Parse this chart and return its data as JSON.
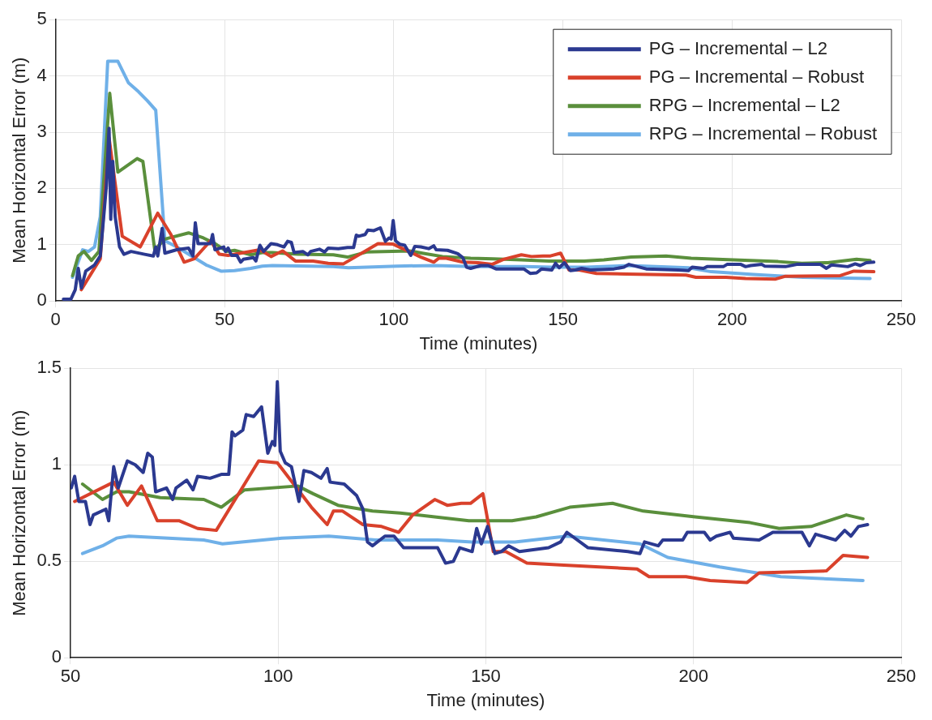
{
  "chart_data": [
    {
      "type": "line",
      "xlabel": "Time (minutes)",
      "ylabel": "Mean Horizontal Error (m)",
      "xlim": [
        0,
        250
      ],
      "ylim": [
        0,
        5
      ],
      "xticks": [
        0,
        50,
        100,
        150,
        200,
        250
      ],
      "yticks": [
        0,
        1,
        2,
        3,
        4,
        5
      ],
      "grid": true,
      "legend": "top right",
      "series": [
        {
          "name": "PG – Incremental – L2",
          "color": "#2b3990",
          "x": [
            2.3,
            4.5,
            5.8,
            6.7,
            7.6,
            8.9,
            11.5,
            13.2,
            15,
            15.8,
            16.3,
            16.9,
            17.6,
            18.9,
            20.2,
            22.3,
            26.3,
            28.9,
            29.6,
            30.2,
            31.5,
            32.3,
            35.8,
            39.3,
            40.6,
            41.3,
            42.1,
            45.8,
            46.4,
            47.1,
            49.7,
            50.2,
            51,
            52,
            53.6,
            54.7,
            55.5,
            58.5,
            59.2,
            60.4,
            61.5,
            63.7,
            65.6,
            67.5,
            68.6,
            69.7,
            70.5,
            73.1,
            74.6,
            75.4,
            78,
            79.5,
            80.6,
            83.6,
            86.3,
            88.1,
            88.9,
            89.6,
            91.5,
            92.3,
            94.1,
            96,
            97.5,
            98.6,
            99.2,
            99.8,
            100.5,
            101.7,
            103.2,
            105,
            106.2,
            108,
            110.3,
            111.8,
            112.5,
            115.9,
            118.9,
            120.4,
            121.5,
            122.7,
            125.7,
            127.9,
            130.2,
            136.2,
            138.4,
            140.3,
            142.2,
            143.7,
            146.7,
            147.8,
            148.9,
            150.4,
            152.2,
            153.7,
            155.5,
            158.1,
            165.1,
            168,
            169.5,
            174.6,
            184.2,
            187.1,
            188.2,
            191.5,
            192.6,
            197.4,
            198.5,
            202.6,
            204,
            205.5,
            208.8,
            209.6,
            215.8,
            219.1,
            226.1,
            227.9,
            229.4,
            234.2,
            236.4,
            237.9,
            239.7,
            241.9
          ],
          "values": [
            0.03,
            0.03,
            0.2,
            0.58,
            0.23,
            0.53,
            0.64,
            0.8,
            2.04,
            3.07,
            1.45,
            2.48,
            1.5,
            0.96,
            0.83,
            0.88,
            0.83,
            0.8,
            0.96,
            0.8,
            1.29,
            0.85,
            0.91,
            0.94,
            0.8,
            1.39,
            1.02,
            1.02,
            1.18,
            0.91,
            0.96,
            0.88,
            0.94,
            0.81,
            0.81,
            0.69,
            0.74,
            0.77,
            0.71,
            0.99,
            0.88,
            1.02,
            1.0,
            0.96,
            1.06,
            1.04,
            0.86,
            0.88,
            0.82,
            0.88,
            0.92,
            0.87,
            0.94,
            0.93,
            0.95,
            0.95,
            1.17,
            1.15,
            1.18,
            1.26,
            1.25,
            1.3,
            1.06,
            1.12,
            1.1,
            1.43,
            1.07,
            1.01,
            0.99,
            0.81,
            0.97,
            0.96,
            0.93,
            0.98,
            0.91,
            0.9,
            0.84,
            0.77,
            0.6,
            0.58,
            0.63,
            0.63,
            0.57,
            0.57,
            0.57,
            0.49,
            0.5,
            0.57,
            0.55,
            0.67,
            0.59,
            0.68,
            0.54,
            0.55,
            0.58,
            0.55,
            0.57,
            0.6,
            0.65,
            0.57,
            0.55,
            0.54,
            0.6,
            0.58,
            0.61,
            0.61,
            0.65,
            0.65,
            0.61,
            0.63,
            0.65,
            0.62,
            0.61,
            0.65,
            0.65,
            0.58,
            0.64,
            0.61,
            0.66,
            0.63,
            0.68,
            0.69
          ]
        },
        {
          "name": "PG – Incremental – Robust",
          "color": "#d9412b",
          "x": [
            7.6,
            13.2,
            15.8,
            19.7,
            25,
            30.2,
            34.1,
            38,
            41,
            45.8,
            48.4,
            51,
            60.4,
            63.7,
            67.1,
            70.9,
            76.1,
            80.6,
            85.1,
            95.3,
            99.8,
            108,
            111.8,
            113.3,
            115.5,
            120.4,
            124.9,
            129,
            132.4,
            137.7,
            140.7,
            144.1,
            146.3,
            149.3,
            151.8,
            154.8,
            159.9,
            168.8,
            186.4,
            189.3,
            198.2,
            204,
            212.9,
            215.8,
            232,
            236,
            241.9
          ],
          "values": [
            0.2,
            0.75,
            2.9,
            1.15,
            0.96,
            1.56,
            1.18,
            0.69,
            0.75,
            1.07,
            0.83,
            0.81,
            0.91,
            0.79,
            0.89,
            0.71,
            0.71,
            0.67,
            0.66,
            1.02,
            1.01,
            0.78,
            0.69,
            0.76,
            0.76,
            0.69,
            0.68,
            0.65,
            0.74,
            0.82,
            0.79,
            0.8,
            0.8,
            0.85,
            0.55,
            0.55,
            0.49,
            0.48,
            0.46,
            0.42,
            0.42,
            0.4,
            0.39,
            0.44,
            0.45,
            0.53,
            0.52
          ]
        },
        {
          "name": "RPG – Incremental – L2",
          "color": "#5a8f3c",
          "x": [
            5,
            6.7,
            8.4,
            10.6,
            12.8,
            16,
            18.4,
            24.1,
            25.8,
            29.3,
            32.3,
            39.3,
            43.7,
            47.1,
            50.6,
            52.9,
            57.7,
            61.1,
            64.1,
            71.6,
            82.1,
            86.3,
            91.9,
            104.7,
            108.4,
            114.4,
            122.7,
            129.4,
            137.7,
            145.9,
            156.3,
            162.1,
            170.2,
            180.5,
            187.9,
            200.4,
            213.6,
            220.6,
            228.3,
            236.8,
            240.8
          ],
          "values": [
            0.45,
            0.8,
            0.88,
            0.72,
            0.88,
            3.69,
            2.29,
            2.53,
            2.48,
            0.91,
            1.1,
            1.21,
            1.12,
            1.02,
            0.88,
            0.9,
            0.82,
            0.86,
            0.86,
            0.83,
            0.82,
            0.78,
            0.87,
            0.89,
            0.85,
            0.79,
            0.76,
            0.75,
            0.73,
            0.71,
            0.71,
            0.73,
            0.78,
            0.8,
            0.76,
            0.73,
            0.7,
            0.67,
            0.68,
            0.74,
            0.72
          ]
        },
        {
          "name": "RPG – Incremental – Robust",
          "color": "#6fb0e8",
          "x": [
            5,
            8,
            9.7,
            11.5,
            13.2,
            15.4,
            18.4,
            21.5,
            24.5,
            27.1,
            29.6,
            32.3,
            35.8,
            40.2,
            44.5,
            48.9,
            52.9,
            57.7,
            61.1,
            64.1,
            82.1,
            86.6,
            100.9,
            112.2,
            123.4,
            138.4,
            146.7,
            150,
            157,
            169.5,
            187.1,
            193.8,
            206.3,
            221,
            240.8
          ],
          "values": [
            0.42,
            0.91,
            0.88,
            0.96,
            1.5,
            4.26,
            4.26,
            3.88,
            3.72,
            3.56,
            3.39,
            1.07,
            0.96,
            0.8,
            0.64,
            0.53,
            0.54,
            0.58,
            0.62,
            0.63,
            0.61,
            0.59,
            0.62,
            0.63,
            0.61,
            0.61,
            0.6,
            0.6,
            0.6,
            0.63,
            0.59,
            0.52,
            0.47,
            0.42,
            0.4
          ]
        }
      ]
    },
    {
      "type": "line",
      "xlabel": "Time (minutes)",
      "ylabel": "Mean Horizontal Error (m)",
      "xlim": [
        50,
        250
      ],
      "ylim": [
        0,
        1.5
      ],
      "xticks": [
        50,
        100,
        150,
        200,
        250
      ],
      "yticks": [
        0,
        0.5,
        1,
        1.5
      ],
      "grid": true,
      "series": [
        {
          "color": "#2b3990",
          "x": [
            50.2,
            51,
            52,
            53.6,
            54.7,
            55.5,
            58.5,
            59.2,
            60.4,
            61.5,
            63.7,
            65.6,
            67.5,
            68.6,
            69.7,
            70.5,
            73.1,
            74.6,
            75.4,
            78,
            79.5,
            80.6,
            83.6,
            86.3,
            88.1,
            88.9,
            89.6,
            91.5,
            92.3,
            94.1,
            96,
            97.5,
            98.6,
            99.2,
            99.8,
            100.5,
            101.7,
            103.2,
            105,
            106.2,
            108,
            110.3,
            111.8,
            112.5,
            115.9,
            118.9,
            120.4,
            121.5,
            122.7,
            125.7,
            127.9,
            130.2,
            136.2,
            138.4,
            140.3,
            142.2,
            143.7,
            146.7,
            147.8,
            148.9,
            150.4,
            152.2,
            153.7,
            155.5,
            158.1,
            165.1,
            168,
            169.5,
            174.6,
            184.2,
            187.1,
            188.2,
            191.5,
            192.6,
            197.4,
            198.5,
            202.6,
            204,
            205.5,
            208.8,
            209.6,
            215.8,
            219.1,
            226.1,
            227.9,
            229.4,
            234.2,
            236.4,
            237.9,
            239.7,
            241.9
          ],
          "values": [
            0.88,
            0.94,
            0.81,
            0.81,
            0.69,
            0.74,
            0.77,
            0.71,
            0.99,
            0.88,
            1.02,
            1.0,
            0.96,
            1.06,
            1.04,
            0.86,
            0.88,
            0.82,
            0.88,
            0.92,
            0.87,
            0.94,
            0.93,
            0.95,
            0.95,
            1.17,
            1.15,
            1.18,
            1.26,
            1.25,
            1.3,
            1.06,
            1.12,
            1.1,
            1.43,
            1.07,
            1.01,
            0.99,
            0.81,
            0.97,
            0.96,
            0.93,
            0.98,
            0.91,
            0.9,
            0.84,
            0.77,
            0.6,
            0.58,
            0.63,
            0.63,
            0.57,
            0.57,
            0.57,
            0.49,
            0.5,
            0.57,
            0.55,
            0.67,
            0.59,
            0.68,
            0.54,
            0.55,
            0.58,
            0.55,
            0.57,
            0.6,
            0.65,
            0.57,
            0.55,
            0.54,
            0.6,
            0.58,
            0.61,
            0.61,
            0.65,
            0.65,
            0.61,
            0.63,
            0.65,
            0.62,
            0.61,
            0.65,
            0.65,
            0.58,
            0.64,
            0.61,
            0.66,
            0.63,
            0.68,
            0.69
          ]
        },
        {
          "color": "#d9412b",
          "x": [
            51,
            60.4,
            63.7,
            67.1,
            70.9,
            76.1,
            80.6,
            85.1,
            95.3,
            99.8,
            108,
            111.8,
            113.3,
            115.5,
            120.4,
            124.9,
            129,
            132.4,
            137.7,
            140.7,
            144.1,
            146.3,
            149.3,
            151.8,
            154.8,
            159.9,
            168.8,
            186.4,
            189.3,
            198.2,
            204,
            212.9,
            215.8,
            232,
            236,
            241.9
          ],
          "values": [
            0.81,
            0.91,
            0.79,
            0.89,
            0.71,
            0.71,
            0.67,
            0.66,
            1.02,
            1.01,
            0.78,
            0.69,
            0.76,
            0.76,
            0.69,
            0.68,
            0.65,
            0.74,
            0.82,
            0.79,
            0.8,
            0.8,
            0.85,
            0.55,
            0.55,
            0.49,
            0.48,
            0.46,
            0.42,
            0.42,
            0.4,
            0.39,
            0.44,
            0.45,
            0.53,
            0.52
          ]
        },
        {
          "color": "#5a8f3c",
          "x": [
            52.9,
            57.7,
            61.1,
            64.1,
            71.6,
            82.1,
            86.3,
            91.9,
            104.7,
            108.4,
            114.4,
            122.7,
            129.4,
            137.7,
            145.9,
            156.3,
            162.1,
            170.2,
            180.5,
            187.9,
            200.4,
            213.6,
            220.6,
            228.3,
            236.8,
            240.8
          ],
          "values": [
            0.9,
            0.82,
            0.86,
            0.86,
            0.83,
            0.82,
            0.78,
            0.87,
            0.89,
            0.85,
            0.79,
            0.76,
            0.75,
            0.73,
            0.71,
            0.71,
            0.73,
            0.78,
            0.8,
            0.76,
            0.73,
            0.7,
            0.67,
            0.68,
            0.74,
            0.72
          ]
        },
        {
          "color": "#6fb0e8",
          "x": [
            52.9,
            57.7,
            61.1,
            64.1,
            82.1,
            86.6,
            100.9,
            112.2,
            123.4,
            138.4,
            146.7,
            150,
            157,
            169.5,
            187.1,
            193.8,
            206.3,
            221,
            240.8
          ],
          "values": [
            0.54,
            0.58,
            0.62,
            0.63,
            0.61,
            0.59,
            0.62,
            0.63,
            0.61,
            0.61,
            0.6,
            0.6,
            0.6,
            0.63,
            0.59,
            0.52,
            0.47,
            0.42,
            0.4
          ]
        }
      ]
    }
  ]
}
